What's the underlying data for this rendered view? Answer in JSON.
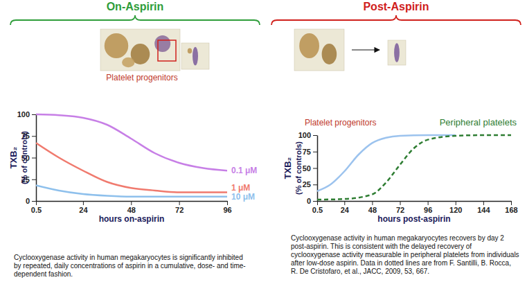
{
  "chart_data": [
    {
      "type": "line",
      "section_title": "On-Aspirin",
      "image_label": "Platelet progenitors",
      "y_label": [
        "TXB₂",
        "(% of controls)"
      ],
      "x_label": "hours on-aspirin",
      "x": [
        0.5,
        12,
        24,
        36,
        48,
        60,
        72,
        84,
        96
      ],
      "series": [
        {
          "name": "0.1 μM",
          "color": "#c77fe6",
          "line_style": "solid",
          "values": [
            100,
            99,
            96,
            88,
            72,
            55,
            44,
            38,
            35
          ]
        },
        {
          "name": "1 μM",
          "color": "#f07a6e",
          "line_style": "solid",
          "values": [
            67,
            50,
            35,
            22,
            15,
            12,
            10,
            10,
            10
          ]
        },
        {
          "name": "10 μM",
          "color": "#8ec0ec",
          "line_style": "solid",
          "values": [
            18,
            12,
            8,
            6,
            5,
            5,
            5,
            5,
            5
          ]
        }
      ],
      "xlim": [
        0.5,
        96
      ],
      "xticks": [
        0.5,
        24,
        48,
        72,
        96
      ],
      "ylim": [
        0,
        100
      ],
      "yticks": [
        0,
        25,
        50,
        75,
        100
      ],
      "grid": false,
      "caption": "Cyclooxygenase activity in human megakaryocytes is significantly inhibited by repeated, daily concentrations of aspirin in a cumulative, dose- and time-dependent fashion."
    },
    {
      "type": "line",
      "section_title": "Post-Aspirin",
      "y_label": [
        "TXB₂",
        "(% of controls)"
      ],
      "x_label": "hours post-aspirin",
      "series": [
        {
          "name": "Platelet progenitors",
          "color": "#9cc3ee",
          "line_style": "solid",
          "x": [
            0.5,
            12,
            24,
            36,
            48,
            60,
            72,
            96,
            120
          ],
          "values": [
            15,
            25,
            45,
            70,
            88,
            96,
            99,
            100,
            100
          ]
        },
        {
          "name": "Peripheral platelets",
          "color": "#2e7d32",
          "line_style": "dashed",
          "x": [
            0.5,
            24,
            48,
            60,
            72,
            84,
            96,
            120,
            144,
            168
          ],
          "values": [
            2,
            3,
            10,
            28,
            55,
            80,
            93,
            99,
            100,
            100
          ]
        }
      ],
      "xlim": [
        0.5,
        168
      ],
      "xticks": [
        0.5,
        24,
        48,
        72,
        96,
        120,
        144,
        168
      ],
      "ylim": [
        0,
        100
      ],
      "yticks": [
        0,
        25,
        50,
        75,
        100
      ],
      "grid": false,
      "caption": "Cyclooxygenase activity in human megakaryocytes recovers by day 2 post-aspirin. This is consistent with the delayed recovery of cyclooxygenase activity measurable in peripheral platelets from individuals after low-dose aspirin. Data in dotted lines are from F. Santilli, B. Rocca, R. De Cristofaro, et al., JACC, 2009, 53, 667."
    }
  ]
}
